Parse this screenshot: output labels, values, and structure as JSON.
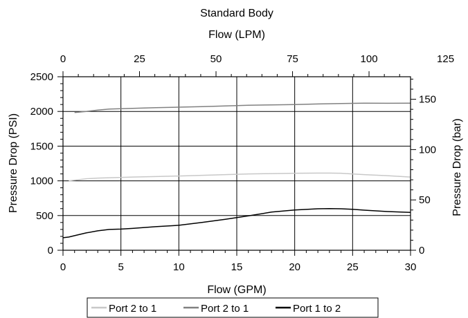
{
  "chart_data": {
    "type": "line",
    "title": "Standard Body",
    "top_axis": {
      "label": "Flow (LPM)",
      "ticks": [
        "0",
        "25",
        "50",
        "75",
        "100",
        "125"
      ],
      "tick_values": [
        0,
        25,
        50,
        75,
        100,
        125
      ]
    },
    "xlabel": "Flow (GPM)",
    "ylabel": "Pressure Drop (PSI)",
    "right_axis": {
      "label": "Pressure Drop (bar)",
      "ticks": [
        "0",
        "50",
        "100",
        "150"
      ],
      "tick_values": [
        0,
        50,
        100,
        150
      ]
    },
    "xlim": [
      0,
      30
    ],
    "ylim": [
      0,
      2500
    ],
    "xticks": [
      "0",
      "5",
      "10",
      "15",
      "20",
      "25",
      "30"
    ],
    "yticks": [
      "0",
      "500",
      "1000",
      "1500",
      "2000",
      "2500"
    ],
    "grid": true,
    "legend_position": "bottom",
    "series": [
      {
        "name": "Port 2 to 1",
        "color": "#c8c8c8",
        "x": [
          0.5,
          1,
          2,
          3,
          4,
          5,
          6,
          8,
          10,
          12,
          14,
          16,
          18,
          20,
          22,
          23,
          24,
          25,
          26,
          28,
          30
        ],
        "y": [
          1000,
          1010,
          1030,
          1040,
          1045,
          1050,
          1055,
          1062,
          1070,
          1080,
          1090,
          1100,
          1105,
          1110,
          1112,
          1112,
          1110,
          1100,
          1090,
          1075,
          1055
        ]
      },
      {
        "name": "Port 2 to 1",
        "color": "#808080",
        "x": [
          1,
          2,
          3,
          4,
          5,
          6,
          8,
          10,
          12,
          14,
          16,
          18,
          20,
          22,
          24,
          26,
          28,
          30
        ],
        "y": [
          1985,
          2000,
          2020,
          2035,
          2040,
          2045,
          2055,
          2062,
          2070,
          2080,
          2090,
          2095,
          2100,
          2108,
          2115,
          2120,
          2118,
          2120
        ]
      },
      {
        "name": "Port 1 to 2",
        "color": "#000000",
        "x": [
          0,
          0.5,
          1,
          2,
          3,
          4,
          5,
          6,
          8,
          10,
          12,
          14,
          16,
          18,
          20,
          22,
          23,
          24,
          25,
          26,
          28,
          30
        ],
        "y": [
          180,
          190,
          210,
          250,
          280,
          300,
          305,
          315,
          340,
          360,
          400,
          445,
          495,
          550,
          580,
          598,
          600,
          598,
          590,
          578,
          558,
          545
        ]
      }
    ],
    "horizontal_lines": {
      "color": "#000000",
      "y": [
        500,
        1000,
        1500,
        2000
      ]
    }
  }
}
